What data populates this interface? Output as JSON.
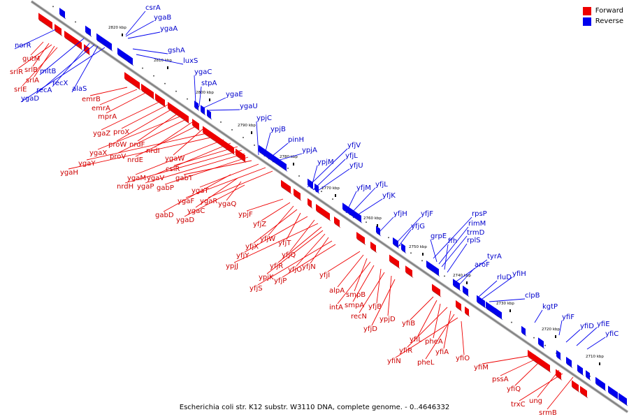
{
  "colors": {
    "forward": "#ee0000",
    "reverse": "#0000ee",
    "backbone": "#808080",
    "forward_label": "#cc0000",
    "reverse_label": "#0000cc"
  },
  "legend": [
    {
      "label": "Forward",
      "color": "#ee0000"
    },
    {
      "label": "Reverse",
      "color": "#0000ee"
    }
  ],
  "caption": "Escherichia coli str. K12 substr. W3110 DNA, complete genome. - 0..4646332",
  "ticks": [
    "2820 kbp",
    "2810 kbp",
    "2800 kbp",
    "2790 kbp",
    "2780 kbp",
    "2770 kbp",
    "2760 kbp",
    "2750 kbp",
    "2740 kbp",
    "2730 kbp",
    "2720 kbp",
    "2710 kbp"
  ],
  "forward_labels": [
    "gutM",
    "srlB",
    "srlR",
    "srlA",
    "srlE",
    "emrB",
    "emrA",
    "mprA",
    "ygaZ",
    "proX",
    "proW",
    "nrdF",
    "ygaX",
    "proV",
    "nrdI",
    "nrdE",
    "ygaW",
    "ygaY",
    "ygaH",
    "ygaM",
    "ygaV",
    "csiR",
    "nrdH",
    "ygaP",
    "gabP",
    "gabT",
    "ygaT",
    "ygaF",
    "ygaR",
    "gabD",
    "ygaC",
    "ygaQ",
    "ygaD",
    "ypjF",
    "yfjZ",
    "yfjW",
    "yfjX",
    "yfjT",
    "yfjY",
    "yfjQ",
    "ypjJ",
    "yfjR",
    "ypjK",
    "yfjO",
    "yfjN",
    "yfjS",
    "yfjP",
    "yfjI",
    "alpA",
    "smpB",
    "intA",
    "smpA",
    "yfjB",
    "recN",
    "ypjD",
    "yfjD",
    "yfiB",
    "yfiL",
    "pheA",
    "yfiR",
    "yfiA",
    "pheL",
    "yfiN",
    "yfiO",
    "yfiM",
    "pssA",
    "yfiQ",
    "ung",
    "trxC",
    "srmB"
  ],
  "reverse_labels": [
    "csrA",
    "ygaB",
    "ygaA",
    "norR",
    "gshA",
    "mltB",
    "luxS",
    "recX",
    "recA",
    "alaS",
    "ygaD",
    "ygaC",
    "stpA",
    "ygaE",
    "ygaU",
    "ypjC",
    "ypjB",
    "pinH",
    "ypjA",
    "yfjV",
    "ypjM",
    "yfjL",
    "yfjU",
    "yfjM",
    "yfjL",
    "yfjK",
    "yfjH",
    "yfjF",
    "yfjG",
    "rpsP",
    "grpE",
    "rimM",
    "trmD",
    "ffh",
    "rplS",
    "tyrA",
    "aroF",
    "rluD",
    "yfiH",
    "clpB",
    "kgtP",
    "yfiF",
    "yfiD",
    "yfiE",
    "yfiC"
  ]
}
